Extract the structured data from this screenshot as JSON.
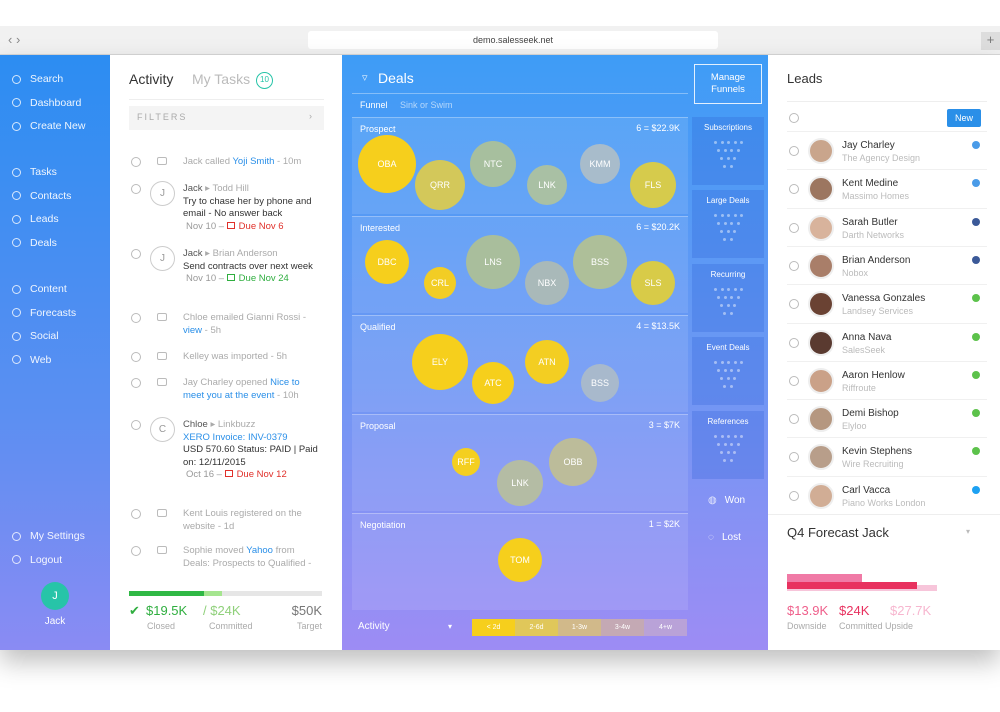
{
  "browser": {
    "url": "demo.salesseek.net"
  },
  "sidebar": {
    "top": [
      "Search",
      "Dashboard",
      "Create New"
    ],
    "middle": [
      "Tasks",
      "Contacts",
      "Leads",
      "Deals"
    ],
    "lower": [
      "Content",
      "Forecasts",
      "Social",
      "Web"
    ],
    "bottom": [
      "My Settings",
      "Logout"
    ],
    "avatar": "J",
    "user": "Jack"
  },
  "activity": {
    "tabs": [
      "Activity",
      "My Tasks"
    ],
    "task_count": "10",
    "filters": "FILTERS",
    "items": [
      {
        "pre": "Jack called",
        "link": "Yoji Smith",
        "time": "- 10m"
      },
      {
        "initial": "J",
        "actor": "Jack",
        "ref": "Todd Hill",
        "body": "Try to chase her by phone and email - No answer back",
        "date": "Nov 10",
        "due": "Due Nov 6",
        "due_color": "#e0302a"
      },
      {
        "initial": "J",
        "actor": "Jack",
        "ref": "Brian Anderson",
        "body": "Send contracts over next week",
        "date": "Nov 10",
        "due": "Due Nov 24",
        "due_color": "#2fae3f"
      },
      {
        "pre": "Chloe emailed Gianni Rossi -",
        "link": "view",
        "time": "- 5h"
      },
      {
        "pre": "Kelley was imported",
        "time": "- 5h"
      },
      {
        "pre": "Jay Charley opened",
        "link": "Nice to meet you at the event",
        "time": "- 10h"
      },
      {
        "initial": "C",
        "actor": "Chloe",
        "ref": "Linkbuzz",
        "link": "XERO Invoice: INV-0379",
        "body": "USD 570.60 Status: PAID | Paid on: 12/11/2015",
        "date": "Oct 16",
        "due": "Due Nov 12",
        "due_color": "#e0302a"
      },
      {
        "pre": "Kent Louis registered on the website",
        "time": "- 1d"
      },
      {
        "pre": "Sophie moved",
        "link": "Yahoo",
        "post": "from Deals: Prospects to Qualified -"
      }
    ],
    "totals": {
      "closed": "$19.5K",
      "closed_label": "Closed",
      "committed": "/ $24K",
      "committed_label": "Committed",
      "target": "$50K",
      "target_label": "Target"
    }
  },
  "deals": {
    "title": "Deals",
    "views": [
      "Funnel",
      "Sink or Swim"
    ],
    "stages": [
      {
        "name": "Prospect",
        "summary": "6 = $22.9K",
        "deals": [
          {
            "label": "OBA",
            "color": "#f6cf1c"
          },
          {
            "label": "QRR",
            "color": "#d3c85a"
          },
          {
            "label": "NTC",
            "color": "#a7bf9e"
          },
          {
            "label": "LNK",
            "color": "#a9c0a4"
          },
          {
            "label": "KMM",
            "color": "#a8bccb"
          },
          {
            "label": "FLS",
            "color": "#d6cb4c"
          }
        ]
      },
      {
        "name": "Interested",
        "summary": "6 = $20.2K",
        "deals": [
          {
            "label": "DBC",
            "color": "#f6cf1c"
          },
          {
            "label": "CRL",
            "color": "#f2cd24"
          },
          {
            "label": "LNS",
            "color": "#a9be9c"
          },
          {
            "label": "NBX",
            "color": "#a9b9b9"
          },
          {
            "label": "BSS",
            "color": "#aebf99"
          },
          {
            "label": "SLS",
            "color": "#d8cb48"
          }
        ]
      },
      {
        "name": "Qualified",
        "summary": "4 = $13.5K",
        "deals": [
          {
            "label": "ELY",
            "color": "#f6cf1c"
          },
          {
            "label": "ATC",
            "color": "#f6cf1c"
          },
          {
            "label": "ATN",
            "color": "#f3ce22"
          },
          {
            "label": "BSS",
            "color": "#a8b9cc"
          }
        ]
      },
      {
        "name": "Proposal",
        "summary": "3 = $7K",
        "deals": [
          {
            "label": "RFF",
            "color": "#f4cf20"
          },
          {
            "label": "LNK",
            "color": "#b4bca4"
          },
          {
            "label": "OBB",
            "color": "#bcbc9a"
          }
        ]
      },
      {
        "name": "Negotiation",
        "summary": "1 = $2K",
        "deals": [
          {
            "label": "TOM",
            "color": "#f6cf1c"
          }
        ]
      }
    ],
    "manage": "Manage Funnels",
    "funnels": [
      "Subscriptions",
      "Large Deals",
      "Recurring",
      "Event Deals",
      "References"
    ],
    "outcomes": [
      "Won",
      "Lost"
    ],
    "activity_label": "Activity",
    "age_legend": [
      "< 2d",
      "2-6d",
      "1-3w",
      "3-4w",
      "4+w"
    ]
  },
  "leads": {
    "title": "Leads",
    "new": "New",
    "people": [
      {
        "name": "Jay Charley",
        "company": "The Agency Design"
      },
      {
        "name": "Kent Medine",
        "company": "Massimo Homes"
      },
      {
        "name": "Sarah Butler",
        "company": "Darth Networks"
      },
      {
        "name": "Brian Anderson",
        "company": "Nobox"
      },
      {
        "name": "Vanessa Gonzales",
        "company": "Landsey Services"
      },
      {
        "name": "Anna Nava",
        "company": "SalesSeek"
      },
      {
        "name": "Aaron Henlow",
        "company": "Riffroute"
      },
      {
        "name": "Demi Bishop",
        "company": "Elyloo"
      },
      {
        "name": "Kevin Stephens",
        "company": "Wire Recruiting"
      },
      {
        "name": "Carl Vacca",
        "company": "Piano Works London"
      }
    ]
  },
  "forecast": {
    "title": "Q4 Forecast Jack",
    "values": [
      {
        "amount": "$13.9K",
        "label": "Downside"
      },
      {
        "amount": "$24K",
        "label": "Committed Upside"
      },
      {
        "amount": "$27.7K"
      }
    ]
  }
}
